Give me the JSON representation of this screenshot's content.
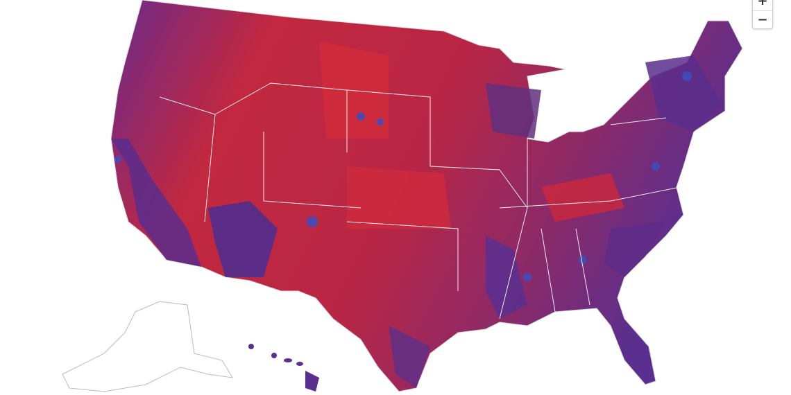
{
  "zoom_controls": {
    "zoom_in": "+",
    "zoom_out": "−"
  }
}
